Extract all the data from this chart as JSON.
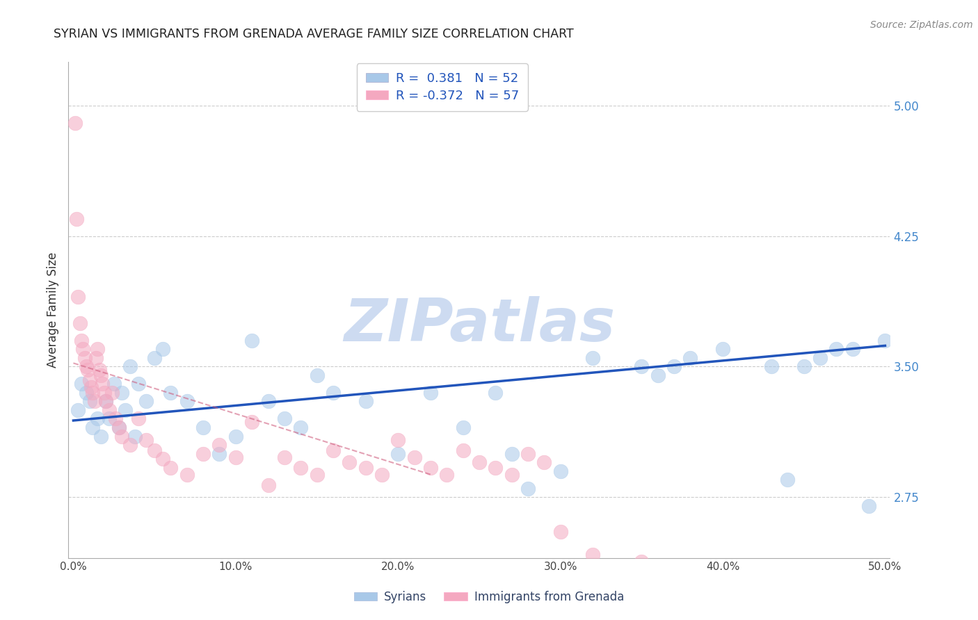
{
  "title": "SYRIAN VS IMMIGRANTS FROM GRENADA AVERAGE FAMILY SIZE CORRELATION CHART",
  "source": "Source: ZipAtlas.com",
  "ylabel": "Average Family Size",
  "xmin": 0.0,
  "xmax": 50.0,
  "ymin": 2.4,
  "ymax": 5.25,
  "yticks_right": [
    2.75,
    3.5,
    4.25,
    5.0
  ],
  "blue_R": 0.381,
  "blue_N": 52,
  "pink_R": -0.372,
  "pink_N": 57,
  "blue_color": "#a8c8e8",
  "pink_color": "#f4a8c0",
  "blue_line_color": "#2255bb",
  "pink_line_color": "#cc5577",
  "grid_color": "#cccccc",
  "right_tick_color": "#4488cc",
  "watermark_color": "#c8d8f0",
  "legend_text_color": "#334466",
  "legend_R_color": "#2255bb",
  "legend_N_color": "#2255bb",
  "bottom_legend_text_color": "#334466",
  "blue_scatter_x": [
    0.3,
    0.5,
    0.8,
    1.0,
    1.2,
    1.5,
    1.7,
    2.0,
    2.2,
    2.5,
    2.8,
    3.0,
    3.2,
    3.5,
    3.8,
    4.0,
    4.5,
    5.0,
    5.5,
    6.0,
    7.0,
    8.0,
    9.0,
    10.0,
    11.0,
    12.0,
    13.0,
    14.0,
    15.0,
    16.0,
    18.0,
    20.0,
    22.0,
    24.0,
    26.0,
    27.0,
    28.0,
    30.0,
    32.0,
    35.0,
    37.0,
    38.0,
    40.0,
    43.0,
    45.0,
    46.0,
    47.0,
    48.0,
    49.0,
    50.0,
    36.0,
    44.0
  ],
  "blue_scatter_y": [
    3.25,
    3.4,
    3.35,
    3.3,
    3.15,
    3.2,
    3.1,
    3.3,
    3.2,
    3.4,
    3.15,
    3.35,
    3.25,
    3.5,
    3.1,
    3.4,
    3.3,
    3.55,
    3.6,
    3.35,
    3.3,
    3.15,
    3.0,
    3.1,
    3.65,
    3.3,
    3.2,
    3.15,
    3.45,
    3.35,
    3.3,
    3.0,
    3.35,
    3.15,
    3.35,
    3.0,
    2.8,
    2.9,
    3.55,
    3.5,
    3.5,
    3.55,
    3.6,
    3.5,
    3.5,
    3.55,
    3.6,
    3.6,
    2.7,
    3.65,
    3.45,
    2.85
  ],
  "pink_scatter_x": [
    0.1,
    0.2,
    0.3,
    0.4,
    0.5,
    0.6,
    0.7,
    0.8,
    0.9,
    1.0,
    1.1,
    1.2,
    1.3,
    1.4,
    1.5,
    1.6,
    1.7,
    1.8,
    1.9,
    2.0,
    2.2,
    2.4,
    2.6,
    2.8,
    3.0,
    3.5,
    4.0,
    4.5,
    5.0,
    5.5,
    6.0,
    7.0,
    8.0,
    9.0,
    10.0,
    11.0,
    12.0,
    13.0,
    14.0,
    15.0,
    16.0,
    17.0,
    18.0,
    19.0,
    20.0,
    21.0,
    22.0,
    23.0,
    24.0,
    25.0,
    26.0,
    27.0,
    28.0,
    29.0,
    30.0,
    32.0,
    35.0
  ],
  "pink_scatter_y": [
    4.9,
    4.35,
    3.9,
    3.75,
    3.65,
    3.6,
    3.55,
    3.5,
    3.48,
    3.42,
    3.38,
    3.35,
    3.3,
    3.55,
    3.6,
    3.48,
    3.45,
    3.4,
    3.35,
    3.3,
    3.25,
    3.35,
    3.2,
    3.15,
    3.1,
    3.05,
    3.2,
    3.08,
    3.02,
    2.97,
    2.92,
    2.88,
    3.0,
    3.05,
    2.98,
    3.18,
    2.82,
    2.98,
    2.92,
    2.88,
    3.02,
    2.95,
    2.92,
    2.88,
    3.08,
    2.98,
    2.92,
    2.88,
    3.02,
    2.95,
    2.92,
    2.88,
    3.0,
    2.95,
    2.55,
    2.42,
    2.38
  ],
  "blue_line_x0": 0.0,
  "blue_line_x1": 50.0,
  "blue_line_y0": 3.19,
  "blue_line_y1": 3.62,
  "pink_line_x0": 0.0,
  "pink_line_x1": 22.0,
  "pink_line_y0": 3.52,
  "pink_line_y1": 2.88
}
